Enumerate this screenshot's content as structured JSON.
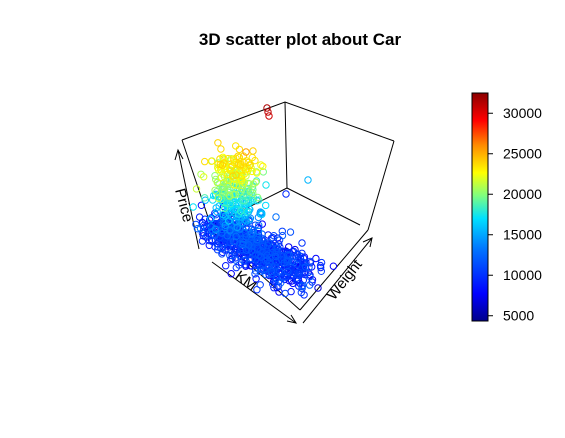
{
  "chart_data": {
    "type": "scatter",
    "title": "3D scatter plot about Car",
    "axes": {
      "x": "KM",
      "y": "Weight",
      "z": "Price"
    },
    "color_variable": "Price",
    "colorbar": {
      "ticks": [
        "5000",
        "10000",
        "15000",
        "20000",
        "25000",
        "30000"
      ],
      "range": [
        4350,
        32500
      ],
      "colors": [
        "#00008b",
        "#0000ff",
        "#0078ff",
        "#00e0ff",
        "#7fff7f",
        "#ffff00",
        "#ff8c00",
        "#ff0000",
        "#8b0000"
      ]
    },
    "grid": false,
    "legend": "right"
  }
}
